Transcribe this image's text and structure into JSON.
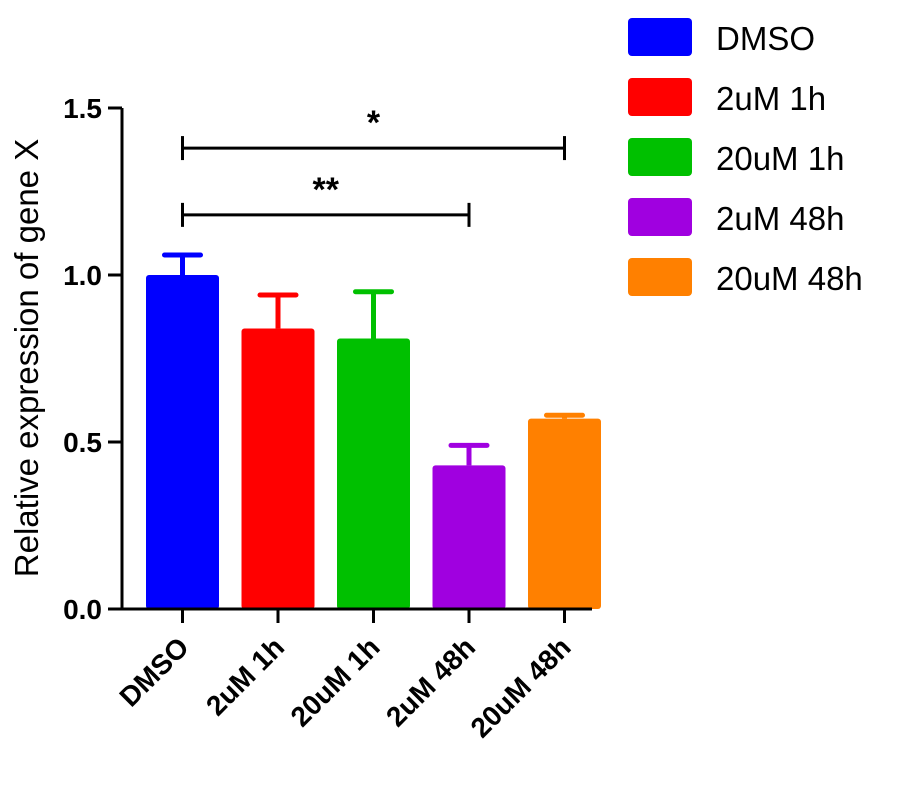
{
  "chart_data": {
    "type": "bar",
    "title": "",
    "xlabel": "",
    "ylabel": "Relative expression of gene X",
    "ylim": [
      0,
      1.5
    ],
    "yticks": [
      "0.0",
      "0.5",
      "1.0",
      "1.5"
    ],
    "categories": [
      "DMSO",
      "2uM 1h",
      "20uM 1h",
      "2uM 48h",
      "20uM 48h"
    ],
    "values": [
      1.0,
      0.84,
      0.81,
      0.43,
      0.57
    ],
    "errors": [
      0.06,
      0.1,
      0.14,
      0.06,
      0.01
    ],
    "colors": [
      "#0000FF",
      "#FF0000",
      "#00C000",
      "#A000E0",
      "#FF8000"
    ],
    "grid": false,
    "legend_position": "top-right",
    "legend": [
      "DMSO",
      "2uM 1h",
      "20uM 1h",
      "2uM 48h",
      "20uM 48h"
    ],
    "significance": [
      {
        "label": "*",
        "from": "DMSO",
        "to": "20uM 48h",
        "y": 1.38
      },
      {
        "label": "**",
        "from": "DMSO",
        "to": "2uM 48h",
        "y": 1.18
      }
    ]
  }
}
